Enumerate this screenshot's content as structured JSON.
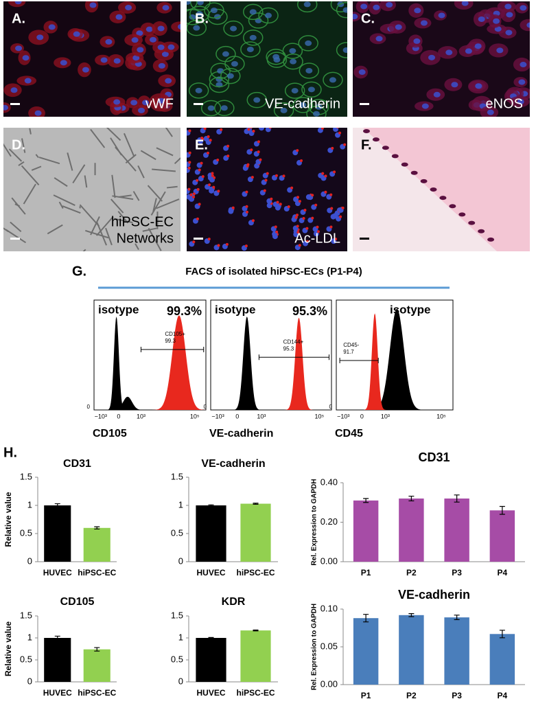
{
  "panels": [
    {
      "letter": "A.",
      "caption": [
        "vWF"
      ]
    },
    {
      "letter": "B.",
      "caption": [
        "VE-cadherin"
      ]
    },
    {
      "letter": "C.",
      "caption": [
        "eNOS"
      ]
    },
    {
      "letter": "D.",
      "caption": [
        "hiPSC-EC",
        "Networks"
      ]
    },
    {
      "letter": "E.",
      "caption": [
        "Ac-LDL"
      ]
    },
    {
      "letter": "F.",
      "caption": []
    }
  ],
  "facs": {
    "letter": "G.",
    "title": "FACS of isolated hiPSC-ECs (P1-P4)",
    "plots": [
      {
        "marker": "CD105",
        "isotype": "isotype",
        "percent": "99.3%",
        "gate_label": [
          "CD105+",
          "99.3"
        ],
        "y_tick_label": "0",
        "x_tick_labels": [
          "−10³",
          "0",
          "10³",
          "10⁵"
        ]
      },
      {
        "marker": "VE-cadherin",
        "isotype": "isotype",
        "percent": "95.3%",
        "gate_label": [
          "CD144+",
          "95.3"
        ],
        "y_tick_label": "0",
        "x_tick_labels": [
          "−10³",
          "0",
          "10³",
          "10⁵"
        ]
      },
      {
        "marker": "CD45",
        "isotype": "isotype",
        "gate_label": [
          "CD45-",
          "91.7"
        ],
        "y_tick_label": "0",
        "x_tick_labels": [
          "−10³",
          "0",
          "10³",
          "10⁵"
        ]
      }
    ]
  },
  "panel_h_letter": "H.",
  "chart_data": [
    {
      "type": "bar",
      "title": "CD31",
      "y_label": "Relative value",
      "categories": [
        "HUVEC",
        "hiPSC-EC"
      ],
      "values": [
        1,
        0.6
      ],
      "errors": [
        0.03,
        0.02
      ],
      "colors": [
        "#000000",
        "#92d050"
      ],
      "ylim": [
        0,
        1.5
      ],
      "yticks": [
        0,
        0.5,
        1,
        1.5
      ]
    },
    {
      "type": "bar",
      "title": "VE-cadherin",
      "categories": [
        "HUVEC",
        "hiPSC-EC"
      ],
      "values": [
        1,
        1.03
      ],
      "errors": [
        0.01,
        0.01
      ],
      "colors": [
        "#000000",
        "#92d050"
      ],
      "ylim": [
        0,
        1.5
      ],
      "yticks": [
        0,
        0.5,
        1,
        1.5
      ]
    },
    {
      "type": "bar",
      "title": "CD105",
      "y_label": "Relative value",
      "categories": [
        "HUVEC",
        "hiPSC-EC"
      ],
      "values": [
        1,
        0.74
      ],
      "errors": [
        0.04,
        0.04
      ],
      "colors": [
        "#000000",
        "#92d050"
      ],
      "ylim": [
        0,
        1.5
      ],
      "yticks": [
        0,
        0.5,
        1,
        1.5
      ]
    },
    {
      "type": "bar",
      "title": "KDR",
      "categories": [
        "HUVEC",
        "hiPSC-EC"
      ],
      "values": [
        1,
        1.17
      ],
      "errors": [
        0.01,
        0.01
      ],
      "colors": [
        "#000000",
        "#92d050"
      ],
      "ylim": [
        0,
        1.5
      ],
      "yticks": [
        0,
        0.5,
        1,
        1.5
      ]
    },
    {
      "type": "bar",
      "title": "CD31",
      "y_label": "Rel. Expression to GAPDH",
      "categories": [
        "P1",
        "P2",
        "P3",
        "P4"
      ],
      "values": [
        0.31,
        0.32,
        0.32,
        0.26
      ],
      "errors": [
        0.01,
        0.012,
        0.018,
        0.02
      ],
      "color": "#a64ca6",
      "ylim": [
        0,
        0.4
      ],
      "yticks": [
        {
          "value": 0,
          "label": "0.00"
        },
        {
          "value": 0.2,
          "label": "0.20"
        },
        {
          "value": 0.4,
          "label": "0.40"
        }
      ]
    },
    {
      "type": "bar",
      "title": "VE-cadherin",
      "y_label": "Rel. Expression to GAPDH",
      "categories": [
        "P1",
        "P2",
        "P3",
        "P4"
      ],
      "values": [
        0.088,
        0.092,
        0.089,
        0.067
      ],
      "errors": [
        0.005,
        0.002,
        0.003,
        0.005
      ],
      "color": "#4a7ebb",
      "ylim": [
        0,
        0.1
      ],
      "yticks": [
        {
          "value": 0,
          "label": "0.00"
        },
        {
          "value": 0.05,
          "label": "0.05"
        },
        {
          "value": 0.1,
          "label": "0.10"
        }
      ]
    }
  ]
}
